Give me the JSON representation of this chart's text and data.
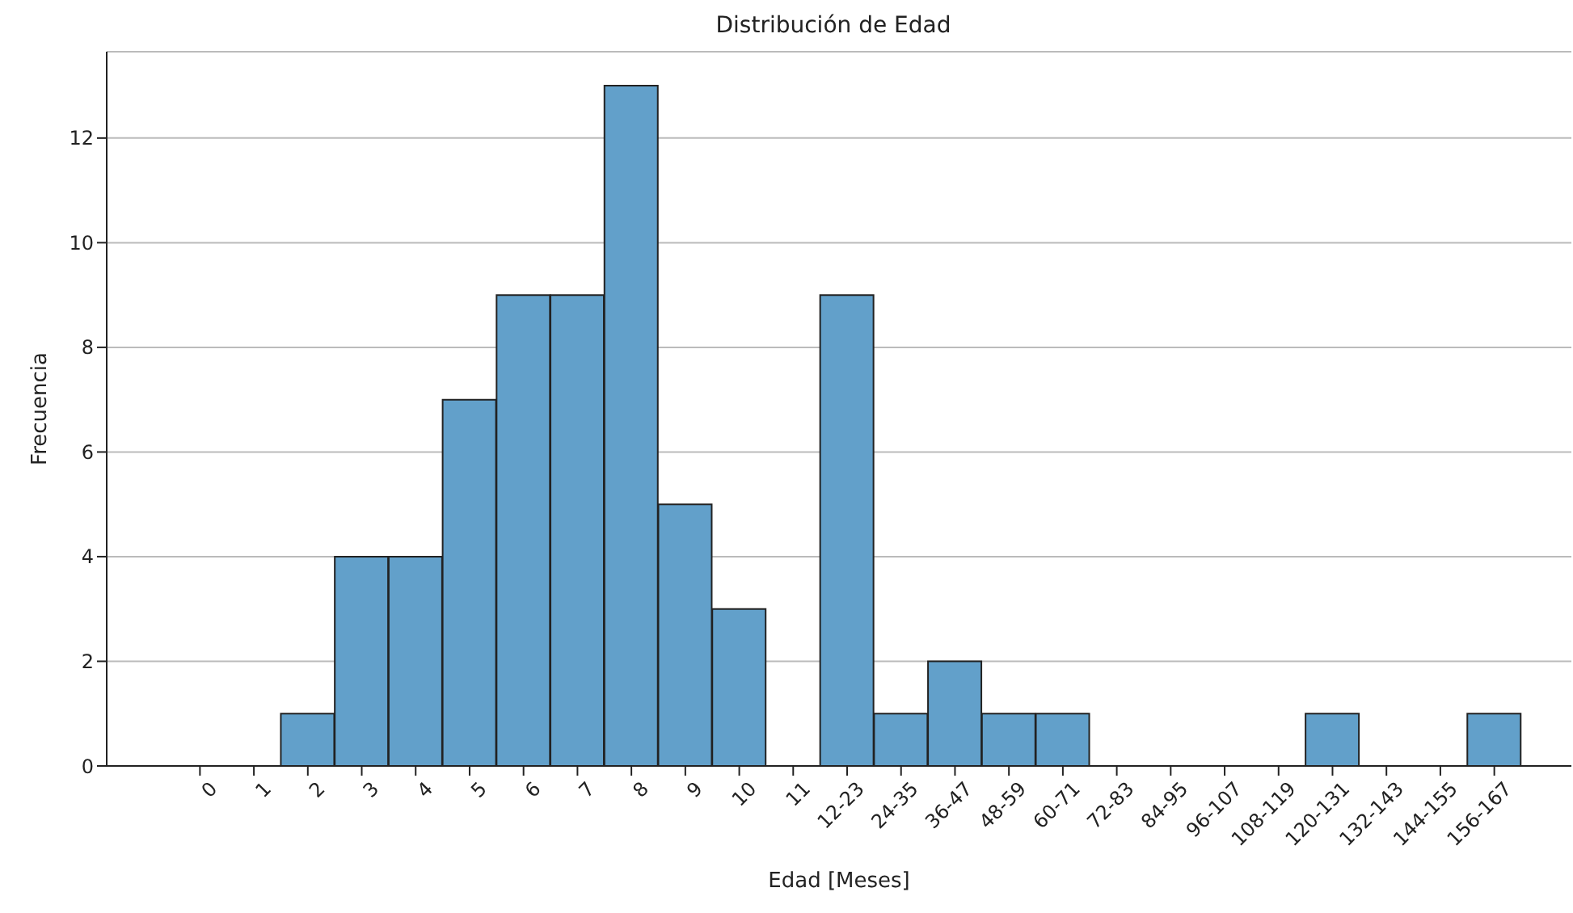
{
  "chart_data": {
    "type": "bar",
    "title": "Distribución de Edad",
    "xlabel": "Edad [Meses]",
    "ylabel": "Frecuencia",
    "categories": [
      "0",
      "1",
      "2",
      "3",
      "4",
      "5",
      "6",
      "7",
      "8",
      "9",
      "10",
      "11",
      "12-23",
      "24-35",
      "36-47",
      "48-59",
      "60-71",
      "72-83",
      "84-95",
      "96-107",
      "108-119",
      "120-131",
      "132-143",
      "144-155",
      "156-167"
    ],
    "values": [
      0,
      0,
      1,
      4,
      4,
      7,
      9,
      9,
      13,
      5,
      3,
      0,
      9,
      1,
      2,
      1,
      1,
      0,
      0,
      0,
      0,
      1,
      0,
      0,
      1
    ],
    "color": "#62a0ca",
    "ylim": [
      0,
      13.65
    ],
    "yticks": [
      0,
      2,
      4,
      6,
      8,
      10,
      12
    ],
    "grid": "y"
  }
}
